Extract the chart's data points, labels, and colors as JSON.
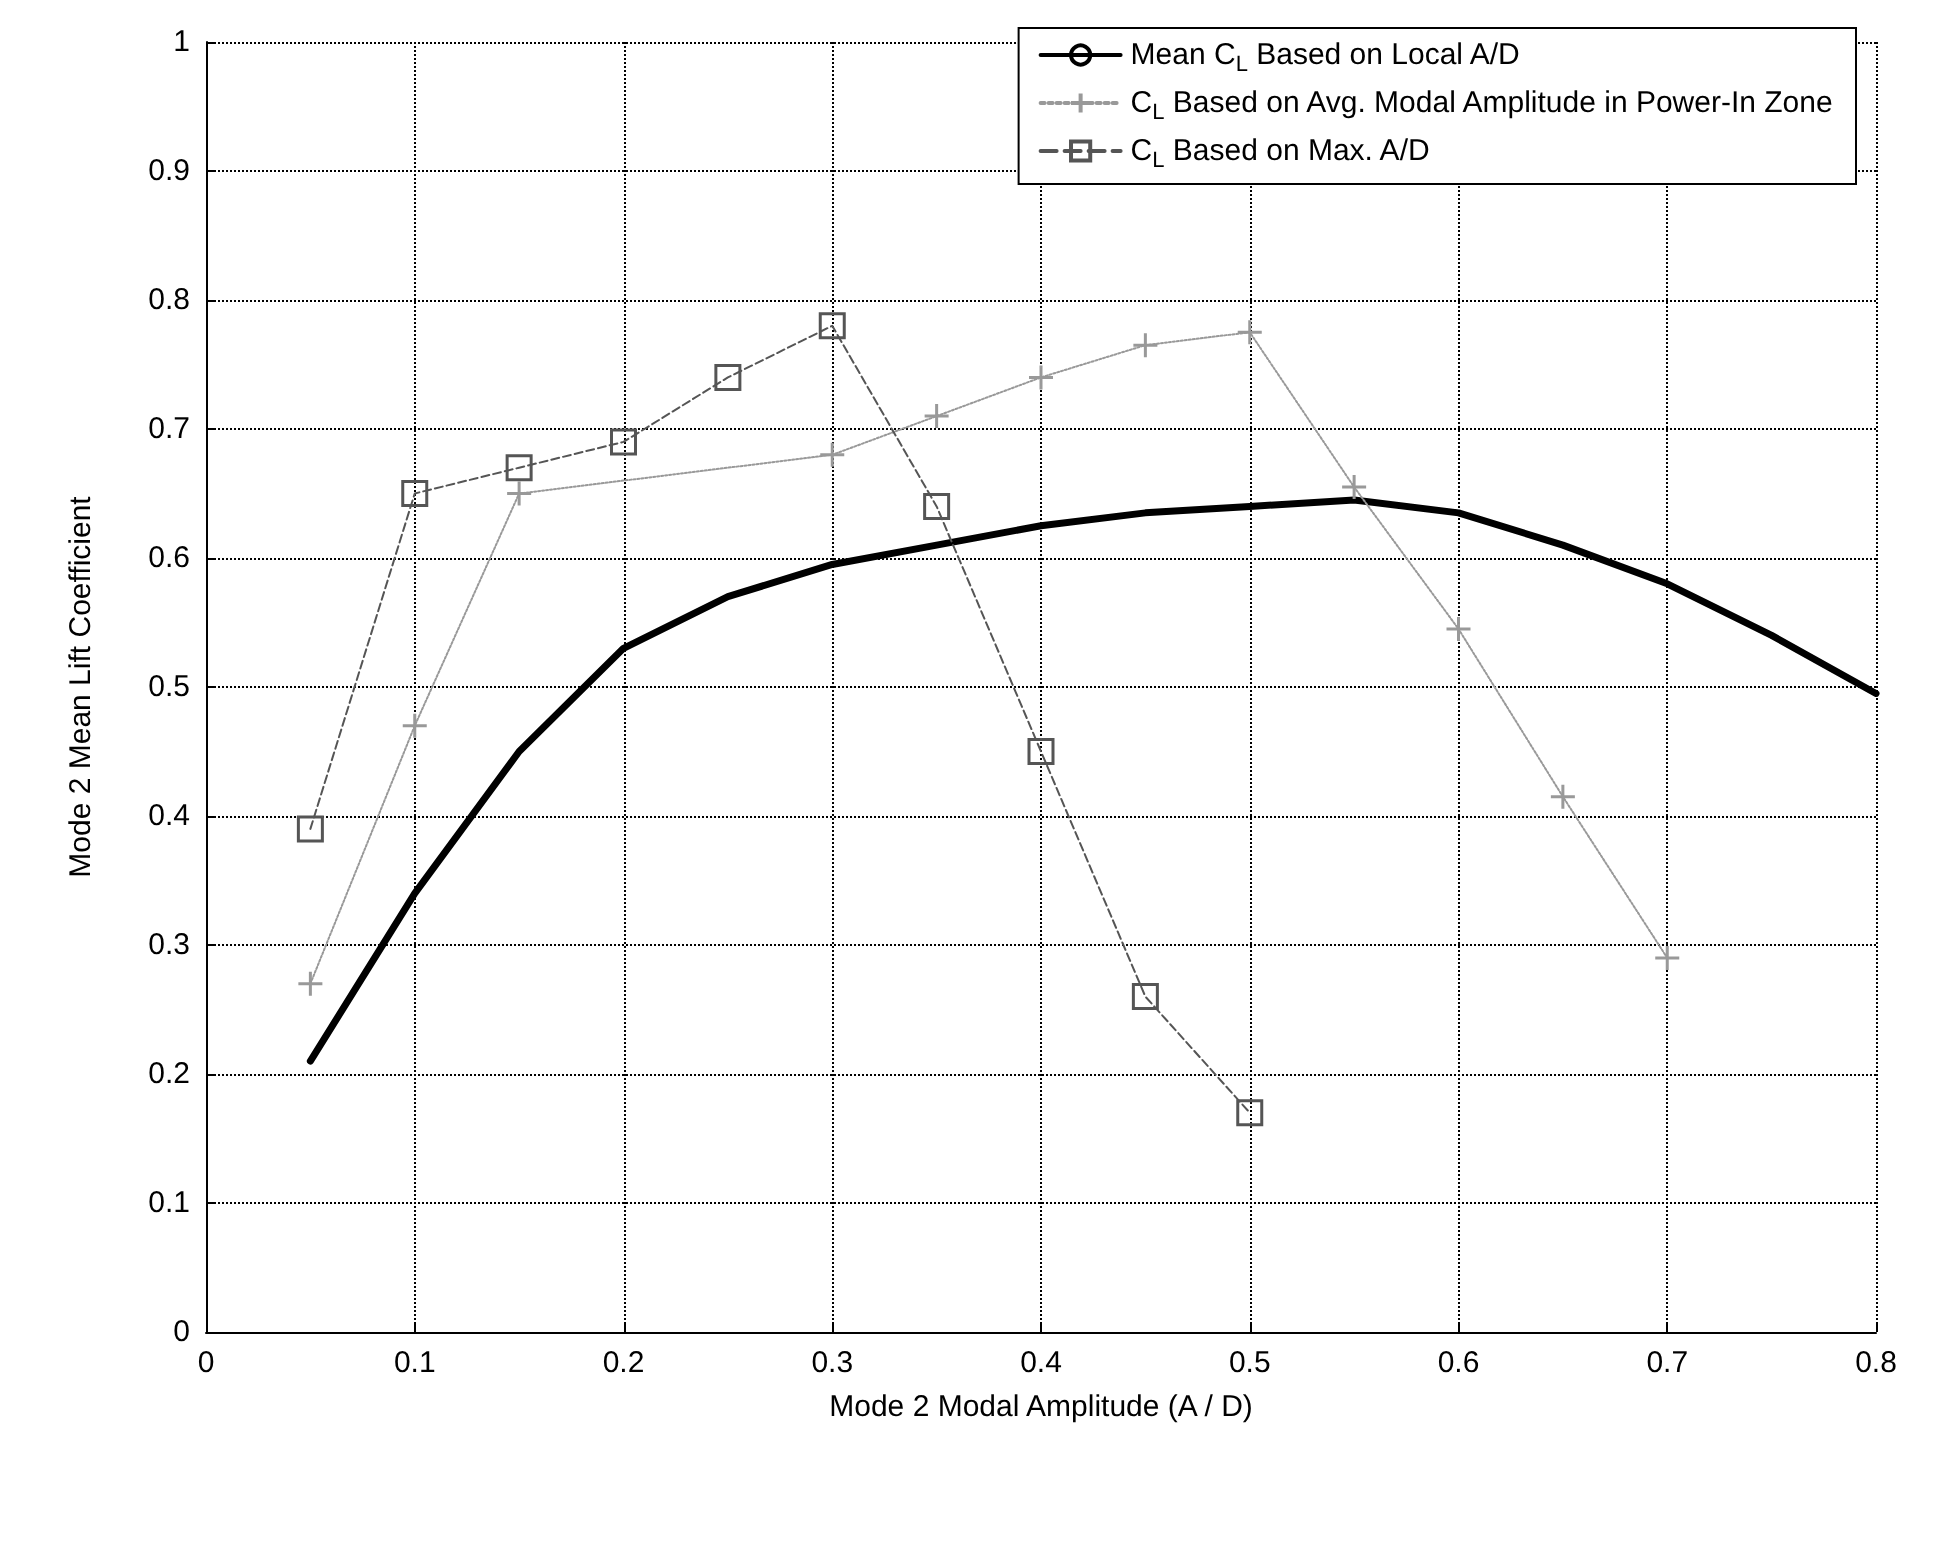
{
  "chart_data": {
    "type": "line",
    "xlabel": "Mode 2 Modal Amplitude (A / D)",
    "ylabel": "Mode 2 Mean Lift Coefficient",
    "xlim": [
      0,
      0.8
    ],
    "xticks": [
      0,
      0.1,
      0.2,
      0.3,
      0.4,
      0.5,
      0.6,
      0.7,
      0.8
    ],
    "ylim": [
      0,
      1
    ],
    "yticks": [
      0,
      0.1,
      0.2,
      0.3,
      0.4,
      0.5,
      0.6,
      0.7,
      0.8,
      0.9,
      1
    ],
    "grid": true,
    "legend": "top right",
    "series": [
      {
        "name": "Mean C$_{L}$ Based on Local A/D",
        "color": "#000000",
        "marker": "none",
        "line_style": "solid",
        "x": [
          0.05,
          0.1,
          0.15,
          0.2,
          0.25,
          0.3,
          0.35,
          0.4,
          0.45,
          0.5,
          0.55,
          0.6,
          0.65,
          0.7,
          0.75,
          0.8
        ],
        "values": [
          0.21,
          0.34,
          0.45,
          0.53,
          0.57,
          0.595,
          0.61,
          0.625,
          0.635,
          0.64,
          0.645,
          0.635,
          0.61,
          0.58,
          0.54,
          0.495
        ]
      },
      {
        "name": "C$_{L}$ Based on Avg. Modal Amplitude in Power-In Zone",
        "color": "#999999",
        "marker": "cross",
        "line_style": "dotted",
        "x": [
          0.05,
          0.1,
          0.15,
          0.3,
          0.35,
          0.4,
          0.45,
          0.5,
          0.55,
          0.6,
          0.65,
          0.7
        ],
        "values": [
          0.27,
          0.47,
          0.65,
          0.68,
          0.71,
          0.74,
          0.765,
          0.775,
          0.655,
          0.545,
          0.415,
          0.29
        ]
      },
      {
        "name": "C$_{L}$ Based on Max. A/D",
        "color": "#555555",
        "marker": "square",
        "line_style": "dashed",
        "x": [
          0.05,
          0.1,
          0.15,
          0.2,
          0.25,
          0.3,
          0.35,
          0.4,
          0.45,
          0.5
        ],
        "values": [
          0.39,
          0.65,
          0.67,
          0.69,
          0.74,
          0.78,
          0.64,
          0.45,
          0.26,
          0.17
        ]
      }
    ]
  }
}
